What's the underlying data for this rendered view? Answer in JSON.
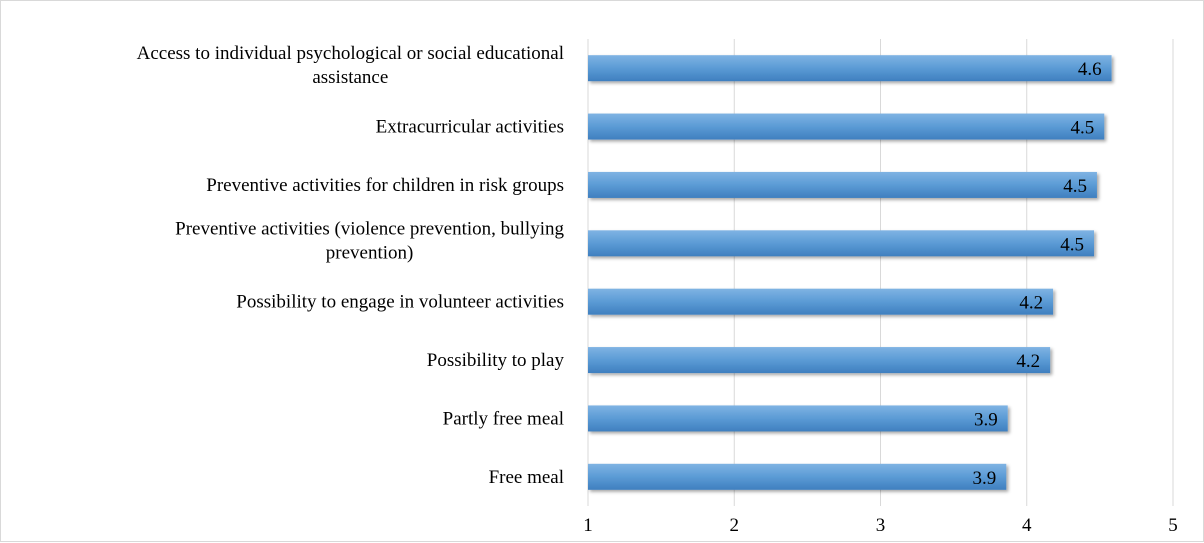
{
  "chart_data": {
    "type": "bar",
    "orientation": "horizontal",
    "categories": [
      "Access to individual psychological or social educational assistance",
      "Extracurricular activities",
      "Preventive activities for children in risk groups",
      "Preventive activities (violence prevention, bullying prevention)",
      "Possibility to engage in volunteer activities",
      "Possibility to play",
      "Partly free meal",
      "Free meal"
    ],
    "category_lines": [
      [
        "Access to individual psychological or social educational",
        "assistance"
      ],
      [
        "Extracurricular activities"
      ],
      [
        "Preventive activities for children in risk groups"
      ],
      [
        "Preventive activities (violence prevention, bullying",
        "prevention)"
      ],
      [
        "Possibility to engage in volunteer activities"
      ],
      [
        "Possibility to play"
      ],
      [
        "Partly free meal"
      ],
      [
        "Free meal"
      ]
    ],
    "values": [
      4.58,
      4.53,
      4.48,
      4.46,
      4.18,
      4.16,
      3.87,
      3.86
    ],
    "data_labels": [
      "4.6",
      "4.5",
      "4.5",
      "4.5",
      "4.2",
      "4.2",
      "3.9",
      "3.9"
    ],
    "xlim": [
      1,
      5
    ],
    "xticks": [
      "1",
      "2",
      "3",
      "4",
      "5"
    ],
    "grid": "vertical",
    "bar_color": "#5b9bd5",
    "bar_color_light": "#7fb3e3",
    "bar_color_dark": "#3f7fbf",
    "legend": "none"
  }
}
